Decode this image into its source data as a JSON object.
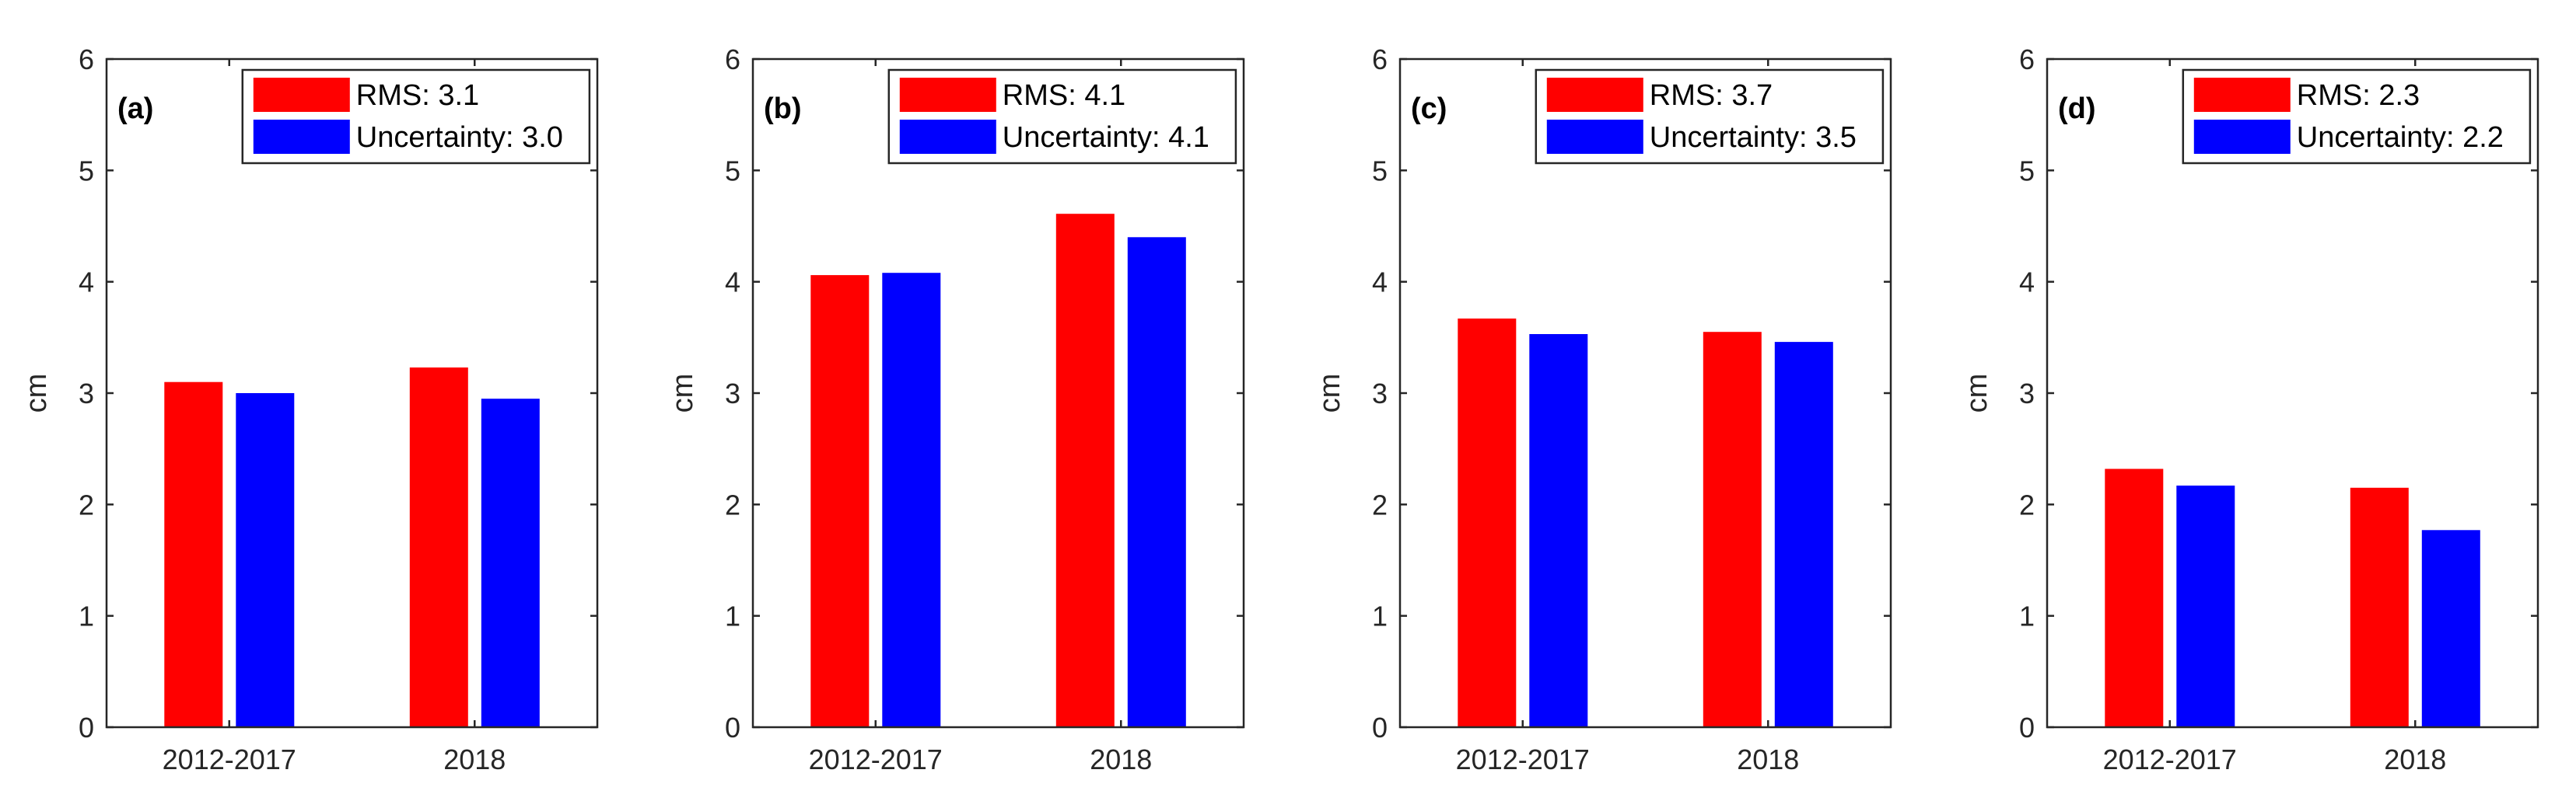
{
  "chart_data": [
    {
      "type": "bar",
      "panel_label": "(a)",
      "categories": [
        "2012-2017",
        "2018"
      ],
      "series": [
        {
          "name": "RMS",
          "legend": "RMS: 3.1",
          "color": "#ff0000",
          "values": [
            3.1,
            3.23
          ]
        },
        {
          "name": "Uncertainty",
          "legend": "Uncertainty: 3.0",
          "color": "#0000ff",
          "values": [
            3.0,
            2.95
          ]
        }
      ],
      "ylabel": "cm",
      "xlabel": "",
      "ylim": [
        0,
        6
      ],
      "yticks": [
        "0",
        "1",
        "2",
        "3",
        "4",
        "5",
        "6"
      ],
      "legend_position": "top-right"
    },
    {
      "type": "bar",
      "panel_label": "(b)",
      "categories": [
        "2012-2017",
        "2018"
      ],
      "series": [
        {
          "name": "RMS",
          "legend": "RMS: 4.1",
          "color": "#ff0000",
          "values": [
            4.06,
            4.61
          ]
        },
        {
          "name": "Uncertainty",
          "legend": "Uncertainty: 4.1",
          "color": "#0000ff",
          "values": [
            4.08,
            4.4
          ]
        }
      ],
      "ylabel": "cm",
      "xlabel": "",
      "ylim": [
        0,
        6
      ],
      "yticks": [
        "0",
        "1",
        "2",
        "3",
        "4",
        "5",
        "6"
      ],
      "legend_position": "top-right"
    },
    {
      "type": "bar",
      "panel_label": "(c)",
      "categories": [
        "2012-2017",
        "2018"
      ],
      "series": [
        {
          "name": "RMS",
          "legend": "RMS: 3.7",
          "color": "#ff0000",
          "values": [
            3.67,
            3.55
          ]
        },
        {
          "name": "Uncertainty",
          "legend": "Uncertainty: 3.5",
          "color": "#0000ff",
          "values": [
            3.53,
            3.46
          ]
        }
      ],
      "ylabel": "cm",
      "xlabel": "",
      "ylim": [
        0,
        6
      ],
      "yticks": [
        "0",
        "1",
        "2",
        "3",
        "4",
        "5",
        "6"
      ],
      "legend_position": "top-right"
    },
    {
      "type": "bar",
      "panel_label": "(d)",
      "categories": [
        "2012-2017",
        "2018"
      ],
      "series": [
        {
          "name": "RMS",
          "legend": "RMS: 2.3",
          "color": "#ff0000",
          "values": [
            2.32,
            2.15
          ]
        },
        {
          "name": "Uncertainty",
          "legend": "Uncertainty: 2.2",
          "color": "#0000ff",
          "values": [
            2.17,
            1.77
          ]
        }
      ],
      "ylabel": "cm",
      "xlabel": "",
      "ylim": [
        0,
        6
      ],
      "yticks": [
        "0",
        "1",
        "2",
        "3",
        "4",
        "5",
        "6"
      ],
      "legend_position": "top-right"
    }
  ]
}
